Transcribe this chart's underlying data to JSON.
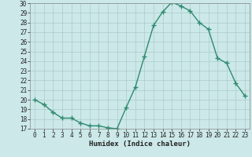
{
  "x": [
    0,
    1,
    2,
    3,
    4,
    5,
    6,
    7,
    8,
    9,
    10,
    11,
    12,
    13,
    14,
    15,
    16,
    17,
    18,
    19,
    20,
    21,
    22,
    23
  ],
  "y": [
    20.0,
    19.5,
    18.7,
    18.1,
    18.1,
    17.6,
    17.3,
    17.3,
    17.1,
    17.0,
    19.2,
    21.3,
    24.5,
    27.7,
    29.1,
    30.1,
    29.7,
    29.2,
    28.0,
    27.3,
    24.3,
    23.8,
    21.7,
    20.4
  ],
  "xlabel": "Humidex (Indice chaleur)",
  "ylim": [
    17,
    30
  ],
  "xlim": [
    -0.5,
    23.5
  ],
  "yticks": [
    17,
    18,
    19,
    20,
    21,
    22,
    23,
    24,
    25,
    26,
    27,
    28,
    29,
    30
  ],
  "xticks": [
    0,
    1,
    2,
    3,
    4,
    5,
    6,
    7,
    8,
    9,
    10,
    11,
    12,
    13,
    14,
    15,
    16,
    17,
    18,
    19,
    20,
    21,
    22,
    23
  ],
  "line_color": "#2e8b6e",
  "bg_color": "#cce8e8",
  "grid_color": "#aacccc",
  "marker": "+",
  "linewidth": 1.0,
  "markersize": 4,
  "tick_fontsize": 5.5,
  "xlabel_fontsize": 6.5
}
